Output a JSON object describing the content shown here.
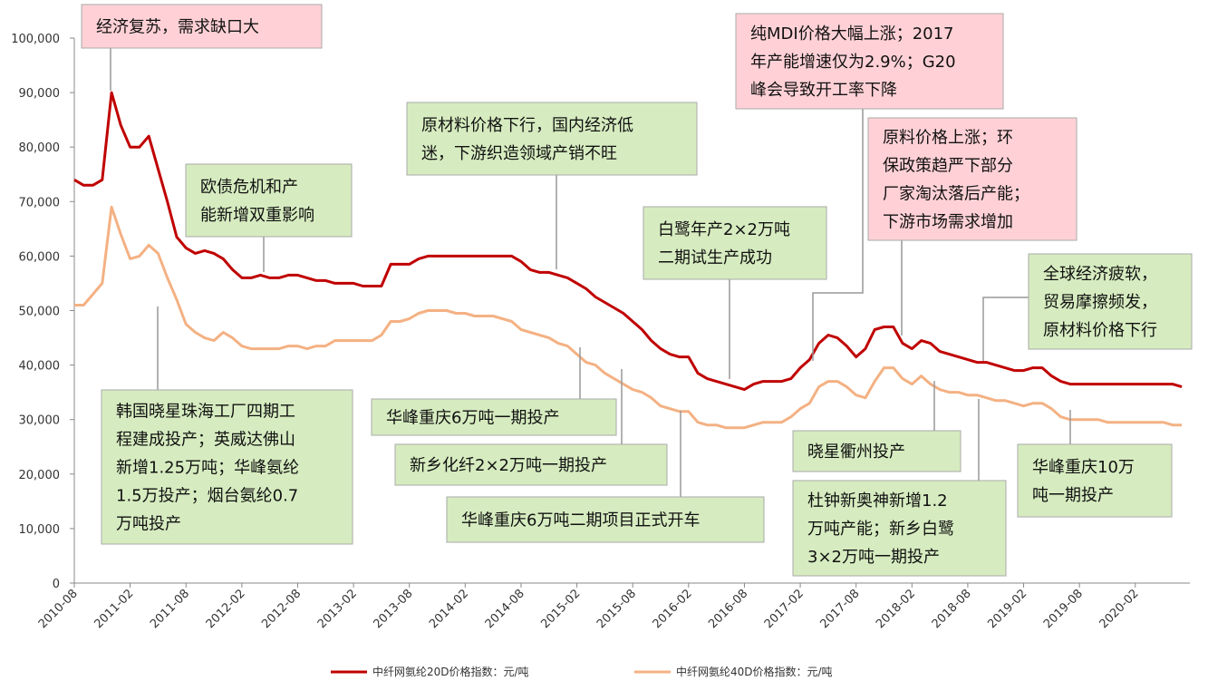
{
  "chart_data": {
    "type": "line",
    "x": [
      "2010-08",
      "2010-09",
      "2010-10",
      "2010-11",
      "2010-12",
      "2011-01",
      "2011-02",
      "2011-03",
      "2011-04",
      "2011-05",
      "2011-06",
      "2011-07",
      "2011-08",
      "2011-09",
      "2011-10",
      "2011-11",
      "2011-12",
      "2012-01",
      "2012-02",
      "2012-03",
      "2012-04",
      "2012-05",
      "2012-06",
      "2012-07",
      "2012-08",
      "2012-09",
      "2012-10",
      "2012-11",
      "2012-12",
      "2013-01",
      "2013-02",
      "2013-03",
      "2013-04",
      "2013-05",
      "2013-06",
      "2013-07",
      "2013-08",
      "2013-09",
      "2013-10",
      "2013-11",
      "2013-12",
      "2014-01",
      "2014-02",
      "2014-03",
      "2014-04",
      "2014-05",
      "2014-06",
      "2014-07",
      "2014-08",
      "2014-09",
      "2014-10",
      "2014-11",
      "2014-12",
      "2015-01",
      "2015-02",
      "2015-03",
      "2015-04",
      "2015-05",
      "2015-06",
      "2015-07",
      "2015-08",
      "2015-09",
      "2015-10",
      "2015-11",
      "2015-12",
      "2016-01",
      "2016-02",
      "2016-03",
      "2016-04",
      "2016-05",
      "2016-06",
      "2016-07",
      "2016-08",
      "2016-09",
      "2016-10",
      "2016-11",
      "2016-12",
      "2017-01",
      "2017-02",
      "2017-03",
      "2017-04",
      "2017-05",
      "2017-06",
      "2017-07",
      "2017-08",
      "2017-09",
      "2017-10",
      "2017-11",
      "2017-12",
      "2018-01",
      "2018-02",
      "2018-03",
      "2018-04",
      "2018-05",
      "2018-06",
      "2018-07",
      "2018-08",
      "2018-09",
      "2018-10",
      "2018-11",
      "2018-12",
      "2019-01",
      "2019-02",
      "2019-03",
      "2019-04",
      "2019-05",
      "2019-06",
      "2019-07",
      "2019-08",
      "2019-09",
      "2019-10",
      "2019-11",
      "2019-12",
      "2020-01",
      "2020-02",
      "2020-03",
      "2020-04",
      "2020-05",
      "2020-06",
      "2020-07"
    ],
    "xticks": [
      "2010-08",
      "2011-02",
      "2011-08",
      "2012-02",
      "2012-08",
      "2013-02",
      "2013-08",
      "2014-02",
      "2014-08",
      "2015-02",
      "2015-08",
      "2016-02",
      "2016-08",
      "2017-02",
      "2017-08",
      "2018-02",
      "2018-08",
      "2019-02",
      "2019-08",
      "2020-02"
    ],
    "ylim": [
      0,
      100000
    ],
    "yticks": [
      0,
      {
        "value": 10000,
        "label": "10,000"
      },
      {
        "value": 20000,
        "label": "20,000"
      },
      {
        "value": 30000,
        "label": "30,000"
      },
      {
        "value": 40000,
        "label": "40,000"
      },
      {
        "value": 50000,
        "label": "50,000"
      },
      {
        "value": 60000,
        "label": "60,000"
      },
      {
        "value": 70000,
        "label": "70,000"
      },
      {
        "value": 80000,
        "label": "80,000"
      },
      {
        "value": 90000,
        "label": "90,000"
      },
      {
        "value": 100000,
        "label": "100,000"
      }
    ],
    "legend": "bottom",
    "series": [
      {
        "name": "中纤网氨纶20D价格指数：元/吨",
        "color": "#c00000",
        "values": [
          74000,
          73000,
          73000,
          74000,
          90000,
          84000,
          80000,
          80000,
          82000,
          76000,
          70000,
          63500,
          61500,
          60500,
          61000,
          60500,
          59500,
          57500,
          56000,
          56000,
          56500,
          56000,
          56000,
          56500,
          56500,
          56000,
          55500,
          55500,
          55000,
          55000,
          55000,
          54500,
          54500,
          54500,
          58500,
          58500,
          58500,
          59500,
          60000,
          60000,
          60000,
          60000,
          60000,
          60000,
          60000,
          60000,
          60000,
          60000,
          59000,
          57500,
          57000,
          57000,
          56500,
          56000,
          55000,
          54000,
          52500,
          51500,
          50500,
          49500,
          48000,
          46500,
          44500,
          43000,
          42000,
          41500,
          41500,
          38500,
          37500,
          37000,
          36500,
          36000,
          35500,
          36500,
          37000,
          37000,
          37000,
          37500,
          39500,
          41000,
          44000,
          45500,
          45000,
          43500,
          41500,
          43000,
          46500,
          47000,
          47000,
          44000,
          43000,
          44500,
          44000,
          42500,
          42000,
          41500,
          41000,
          40500,
          40500,
          40000,
          39500,
          39000,
          39000,
          39500,
          39500,
          38000,
          37000,
          36500,
          36500,
          36500,
          36500,
          36500,
          36500,
          36500,
          36500,
          36500,
          36500,
          36500,
          36500,
          36000
        ]
      },
      {
        "name": "中纤网氨纶40D价格指数：元/吨",
        "color": "#f4b183",
        "values": [
          51000,
          51000,
          53000,
          55000,
          69000,
          64000,
          59500,
          60000,
          62000,
          60500,
          56000,
          52000,
          47500,
          46000,
          45000,
          44500,
          46000,
          45000,
          43500,
          43000,
          43000,
          43000,
          43000,
          43500,
          43500,
          43000,
          43500,
          43500,
          44500,
          44500,
          44500,
          44500,
          44500,
          45500,
          48000,
          48000,
          48500,
          49500,
          50000,
          50000,
          50000,
          49500,
          49500,
          49000,
          49000,
          49000,
          48500,
          48000,
          46500,
          46000,
          45500,
          45000,
          44000,
          43500,
          42000,
          40500,
          40000,
          38500,
          37500,
          36500,
          35500,
          35000,
          34000,
          32500,
          32000,
          31500,
          31500,
          29500,
          29000,
          29000,
          28500,
          28500,
          28500,
          29000,
          29500,
          29500,
          29500,
          30500,
          32000,
          33000,
          36000,
          37000,
          37000,
          36000,
          34500,
          34000,
          37000,
          39500,
          39500,
          37500,
          36500,
          38000,
          36500,
          35500,
          35000,
          35000,
          34500,
          34500,
          34000,
          33500,
          33500,
          33000,
          32500,
          33000,
          33000,
          32000,
          30500,
          30000,
          30000,
          30000,
          30000,
          29500,
          29500,
          29500,
          29500,
          29500,
          29500,
          29500,
          29000,
          29000
        ]
      }
    ],
    "annotations": [
      {
        "text": [
          "经济复苏，需求缺口大"
        ],
        "color": "#ffd1d6"
      },
      {
        "text": [
          "欧债危机和产",
          "能新增双重影响"
        ],
        "color": "#d6ecc0"
      },
      {
        "text": [
          "原材料价格下行，国内经济低",
          "迷，下游织造领域产销不旺"
        ],
        "color": "#d6ecc0"
      },
      {
        "text": [
          "白鹭年产2×2万吨",
          "二期试生产成功"
        ],
        "color": "#d6ecc0"
      },
      {
        "text": [
          "纯MDI价格大幅上涨；2017",
          "年产能增速仅为2.9%；G20",
          "峰会导致开工率下降"
        ],
        "color": "#ffd1d6"
      },
      {
        "text": [
          "原料价格上涨；环",
          "保政策趋严下部分",
          "厂家淘汰落后产能；",
          "下游市场需求增加"
        ],
        "color": "#ffd1d6"
      },
      {
        "text": [
          "全球经济疲软，",
          "贸易摩擦频发，",
          "原材料价格下行"
        ],
        "color": "#d6ecc0"
      },
      {
        "text": [
          "韩国晓星珠海工厂四期工",
          "程建成投产；英威达佛山",
          "新增1.25万吨；华峰氨纶",
          "1.5万投产；烟台氨纶0.7",
          "万吨投产"
        ],
        "color": "#d6ecc0"
      },
      {
        "text": [
          "华峰重庆6万吨一期投产"
        ],
        "color": "#d6ecc0"
      },
      {
        "text": [
          "新乡化纤2×2万吨一期投产"
        ],
        "color": "#d6ecc0"
      },
      {
        "text": [
          "华峰重庆6万吨二期项目正式开车"
        ],
        "color": "#d6ecc0"
      },
      {
        "text": [
          "晓星衢州投产"
        ],
        "color": "#d6ecc0"
      },
      {
        "text": [
          "杜钟新奥神新增1.2",
          "万吨产能；新乡白鹭",
          "3×2万吨一期投产"
        ],
        "color": "#d6ecc0"
      },
      {
        "text": [
          "华峰重庆10万",
          "吨一期投产"
        ],
        "color": "#d6ecc0"
      }
    ]
  }
}
